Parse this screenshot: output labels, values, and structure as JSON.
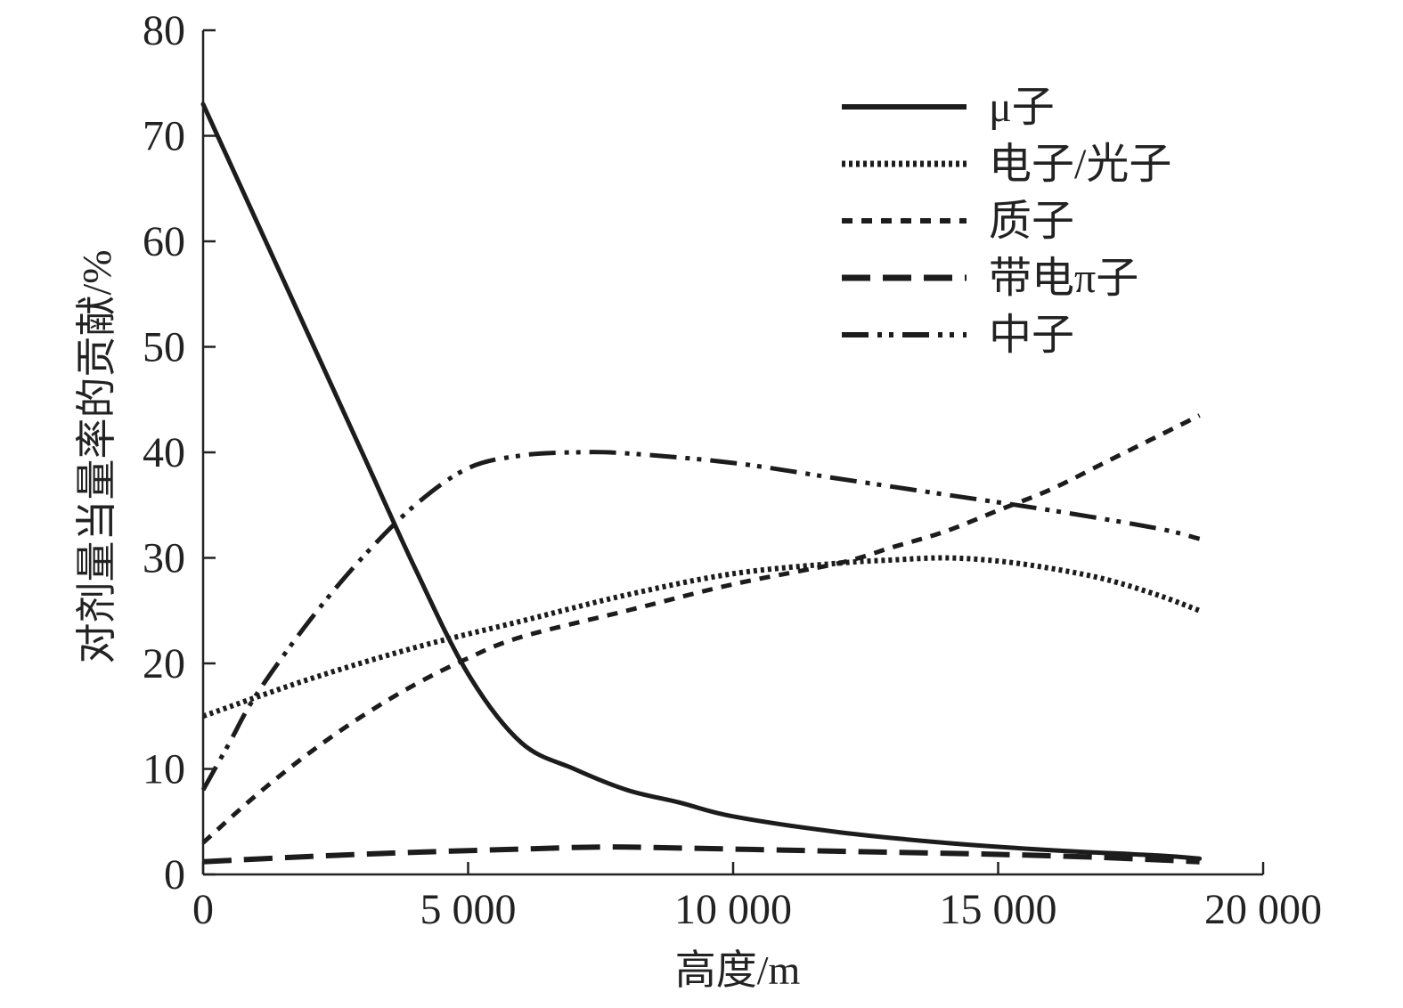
{
  "chart_data": {
    "type": "line",
    "title": "",
    "xlabel": "高度/m",
    "ylabel": "对剂量当量率的贡献/%",
    "xlim": [
      0,
      20000
    ],
    "ylim": [
      0,
      80
    ],
    "grid": false,
    "legend_position": "top-right",
    "x_ticks": [
      {
        "value": 0,
        "label": "0"
      },
      {
        "value": 5000,
        "label": "5 000"
      },
      {
        "value": 10000,
        "label": "10 000"
      },
      {
        "value": 15000,
        "label": "15 000"
      },
      {
        "value": 20000,
        "label": "20 000"
      }
    ],
    "y_ticks": [
      {
        "value": 0,
        "label": "0"
      },
      {
        "value": 10,
        "label": "10"
      },
      {
        "value": 20,
        "label": "20"
      },
      {
        "value": 30,
        "label": "30"
      },
      {
        "value": 40,
        "label": "40"
      },
      {
        "value": 50,
        "label": "50"
      },
      {
        "value": 60,
        "label": "60"
      },
      {
        "value": 70,
        "label": "70"
      },
      {
        "value": 80,
        "label": "80"
      }
    ],
    "series": [
      {
        "name": "μ子",
        "dash": "solid",
        "x": [
          0,
          1000,
          2000,
          3000,
          4000,
          5000,
          6000,
          7000,
          8000,
          9000,
          10000,
          12000,
          14000,
          16000,
          18000,
          18800
        ],
        "y": [
          73,
          62,
          51,
          40,
          29,
          19,
          12.5,
          10,
          8,
          6.8,
          5.5,
          4,
          3,
          2.3,
          1.8,
          1.5
        ]
      },
      {
        "name": "电子/光子",
        "dash": "dotted",
        "x": [
          0,
          2000,
          4000,
          6000,
          8000,
          10000,
          12000,
          13000,
          14000,
          15000,
          16000,
          17000,
          18000,
          18800
        ],
        "y": [
          15,
          18.5,
          21.5,
          24,
          26.5,
          28.5,
          29.5,
          29.8,
          30,
          29.7,
          29,
          28,
          26.5,
          25
        ]
      },
      {
        "name": "质子",
        "dash": "short-dash",
        "x": [
          0,
          1000,
          2000,
          3000,
          4000,
          5000,
          6000,
          8000,
          10000,
          12000,
          13000,
          14000,
          15000,
          16000,
          17000,
          18000,
          18800
        ],
        "y": [
          3,
          7.5,
          11.5,
          15,
          18,
          20.5,
          22.5,
          25,
          27.5,
          29.5,
          31,
          32.5,
          34.5,
          36.5,
          39,
          41.5,
          43.5
        ]
      },
      {
        "name": "带电π子",
        "dash": "long-dash",
        "x": [
          0,
          2000,
          4000,
          6000,
          7500,
          9000,
          11000,
          13000,
          15000,
          17000,
          18800
        ],
        "y": [
          1.2,
          1.7,
          2.1,
          2.4,
          2.6,
          2.5,
          2.3,
          2.1,
          1.9,
          1.6,
          1.2
        ]
      },
      {
        "name": "中子",
        "dash": "dash-dot-dot",
        "x": [
          0,
          500,
          1000,
          2000,
          3000,
          4000,
          5000,
          6000,
          7000,
          8000,
          10000,
          12000,
          14000,
          16000,
          18000,
          18800
        ],
        "y": [
          8,
          12.5,
          17,
          24,
          30,
          35,
          38.5,
          39.7,
          40,
          39.9,
          39,
          37.5,
          36,
          34.5,
          32.8,
          31.8
        ]
      }
    ]
  },
  "colors": {
    "line": "#1c1c1c",
    "axis": "#222222",
    "background": "#ffffff"
  }
}
